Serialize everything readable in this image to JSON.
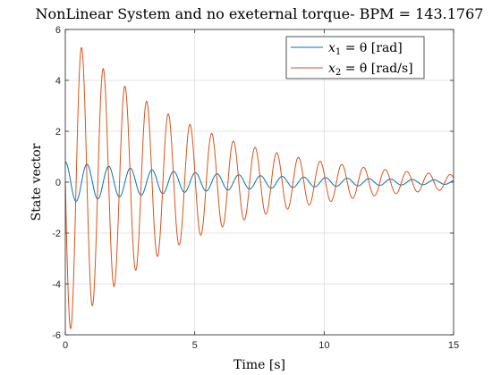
{
  "chart_data": {
    "type": "line",
    "title": "NonLinear System and no exeternal torque- BPM = 143.1767",
    "xlabel": "Time [s]",
    "ylabel": "State vector",
    "xlim": [
      0,
      15
    ],
    "ylim": [
      -6,
      6
    ],
    "xticks": [
      0,
      5,
      10,
      15
    ],
    "yticks": [
      -6,
      -4,
      -2,
      0,
      2,
      4,
      6
    ],
    "grid": true,
    "legend_position": "top-right",
    "series": [
      {
        "name_main": "x",
        "name_sub": "1",
        "name_rest": " = θ [rad]",
        "color": "#0072BD",
        "model": "damped_sine",
        "amplitude": 0.8,
        "period_s": 0.838,
        "decay_per_s": 0.152,
        "phase": "cosine"
      },
      {
        "name_main": "x",
        "name_sub": "2",
        "name_rest": " = θ̇ [rad/s]",
        "color": "#D95319",
        "model": "damped_sine",
        "amplitude": 6.0,
        "period_s": 0.838,
        "decay_per_s": 0.202,
        "phase": "negative-sine"
      }
    ]
  }
}
